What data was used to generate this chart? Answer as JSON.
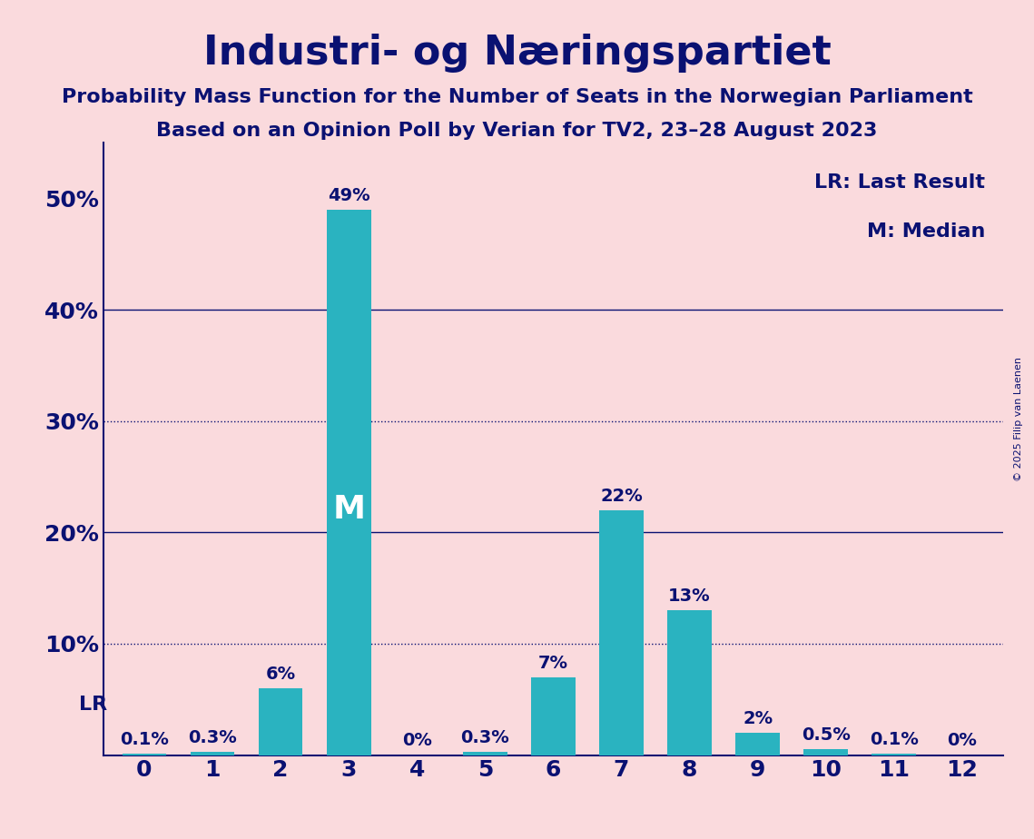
{
  "title": "Industri- og Næringspartiet",
  "subtitle1": "Probability Mass Function for the Number of Seats in the Norwegian Parliament",
  "subtitle2": "Based on an Opinion Poll by Verian for TV2, 23–28 August 2023",
  "copyright": "© 2025 Filip van Laenen",
  "categories": [
    0,
    1,
    2,
    3,
    4,
    5,
    6,
    7,
    8,
    9,
    10,
    11,
    12
  ],
  "values": [
    0.1,
    0.3,
    6.0,
    49.0,
    0.0,
    0.3,
    7.0,
    22.0,
    13.0,
    2.0,
    0.5,
    0.1,
    0.0
  ],
  "bar_color": "#2ab3c0",
  "background_color": "#fadadd",
  "text_color": "#0a1172",
  "label_texts": [
    "0.1%",
    "0.3%",
    "6%",
    "49%",
    "0%",
    "0.3%",
    "7%",
    "22%",
    "13%",
    "2%",
    "0.5%",
    "0.1%",
    "0%"
  ],
  "median_bar": 3,
  "median_label": "M",
  "lr_bar": 0,
  "lr_label": "LR",
  "legend_lr": "LR: Last Result",
  "legend_m": "M: Median",
  "yticks": [
    0,
    10,
    20,
    30,
    40,
    50
  ],
  "yticklabels": [
    "",
    "10%",
    "20%",
    "30%",
    "40%",
    "50%"
  ],
  "solid_gridlines": [
    20,
    40
  ],
  "dotted_gridlines": [
    10,
    30
  ],
  "ylim": [
    0,
    55
  ]
}
